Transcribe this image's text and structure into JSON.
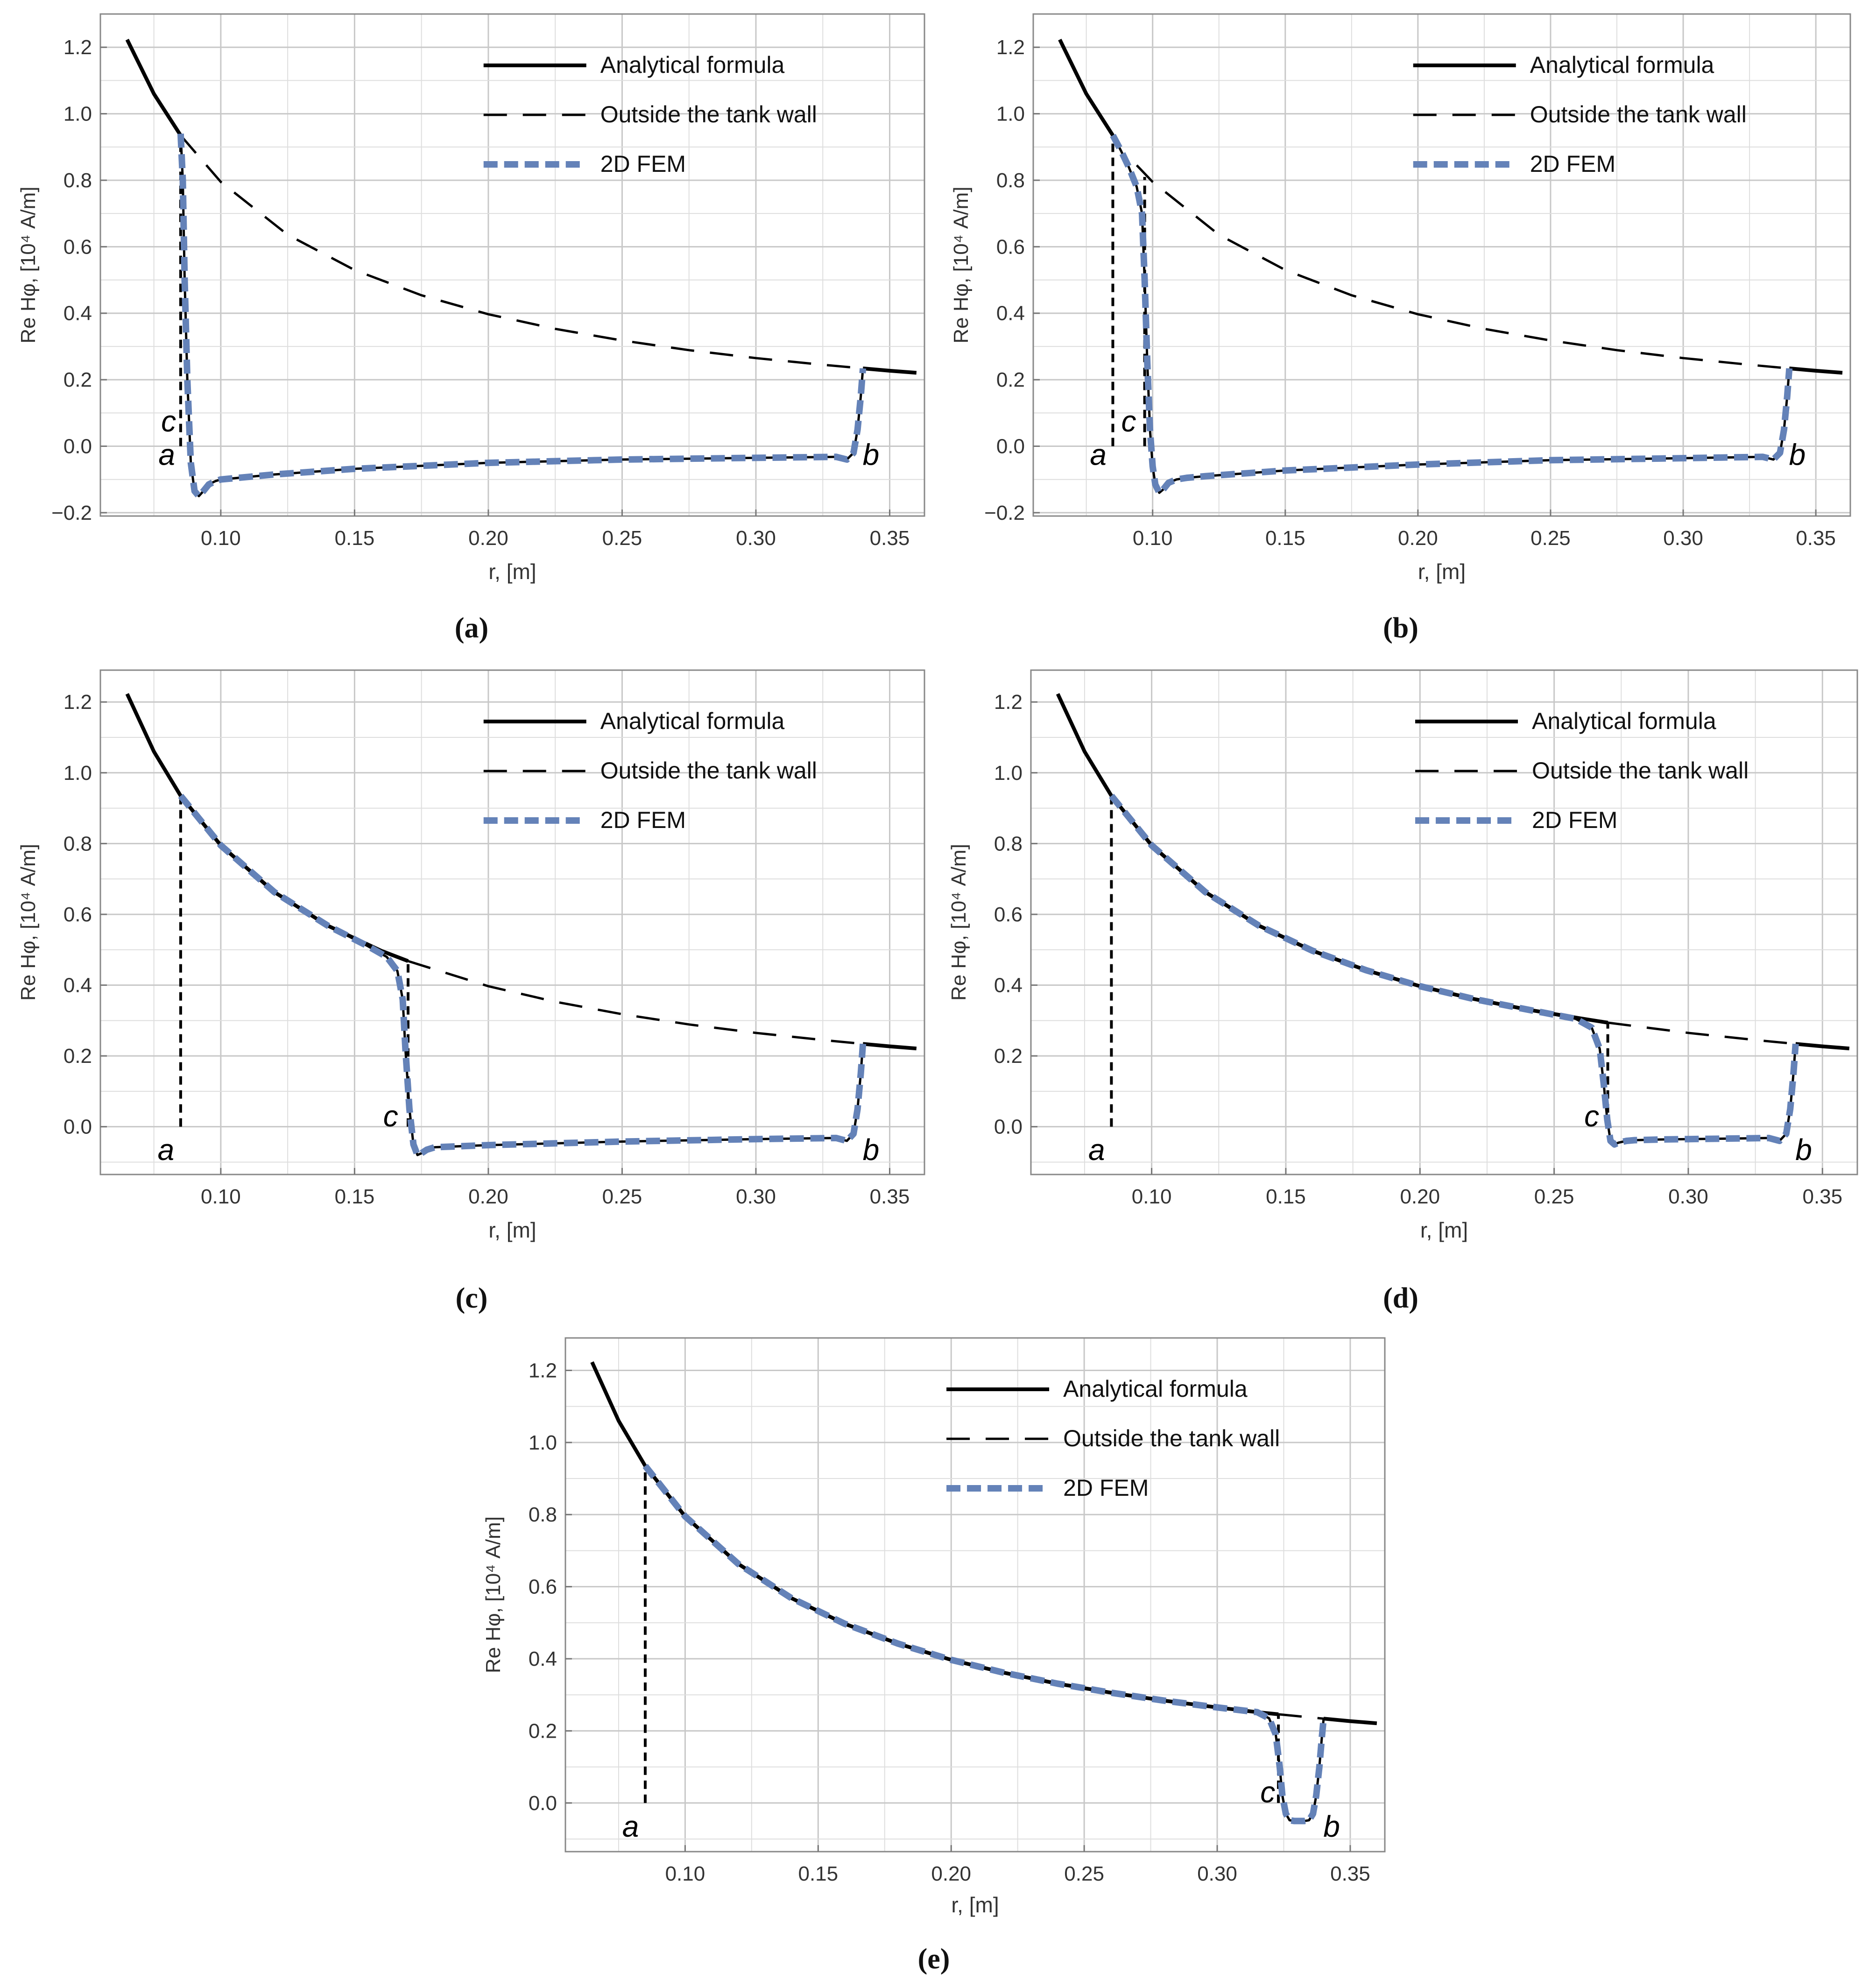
{
  "figure": {
    "captions": [
      "(a)",
      "(b)",
      "(c)",
      "(d)",
      "(e)"
    ]
  },
  "chart_data": [
    {
      "panel": "(a)",
      "type": "line",
      "xlabel": "r, [m]",
      "ylabel": "Re Hφ, [10⁴ A/m]",
      "xlim": [
        0.055,
        0.363
      ],
      "ylim": [
        -0.21,
        1.3
      ],
      "xticks": [
        0.1,
        0.15,
        0.2,
        0.25,
        0.3,
        0.35
      ],
      "xtick_labels": [
        "0.10",
        "0.15",
        "0.20",
        "0.25",
        "0.30",
        "0.35"
      ],
      "yticks": [
        -0.2,
        0.0,
        0.2,
        0.4,
        0.6,
        0.8,
        1.0,
        1.2
      ],
      "ytick_labels": [
        "−0.2",
        "0.0",
        "0.2",
        "0.4",
        "0.6",
        "0.8",
        "1.0",
        "1.2"
      ],
      "grid": true,
      "legend_position": "top-right",
      "legend": [
        "Analytical formula",
        "Outside the tank wall",
        "2D FEM"
      ],
      "series": [
        {
          "name": "Analytical formula",
          "style": "solid-black",
          "x": [
            0.065,
            0.075,
            0.085
          ],
          "y": [
            1.223,
            1.06,
            0.935
          ]
        },
        {
          "name": "Outside the tank wall",
          "style": "dashed-black",
          "x": [
            0.085,
            0.1,
            0.125,
            0.15,
            0.175,
            0.2,
            0.225,
            0.25,
            0.275,
            0.3,
            0.325,
            0.34
          ],
          "y": [
            0.935,
            0.795,
            0.636,
            0.53,
            0.454,
            0.397,
            0.353,
            0.318,
            0.289,
            0.265,
            0.245,
            0.234
          ]
        },
        {
          "name": "Analytical formula",
          "style": "solid-black",
          "x": [
            0.34,
            0.35,
            0.36
          ],
          "y": [
            0.234,
            0.227,
            0.221
          ]
        },
        {
          "name": "2D FEM",
          "style": "fem",
          "x": [
            0.085,
            0.0858,
            0.0865,
            0.0875,
            0.0888,
            0.0902,
            0.0918,
            0.0935,
            0.0955,
            0.098,
            0.1,
            0.12,
            0.15,
            0.2,
            0.25,
            0.3,
            0.33,
            0.334,
            0.3365,
            0.338,
            0.3392,
            0.34
          ],
          "y": [
            0.94,
            0.8,
            0.5,
            0.2,
            -0.05,
            -0.135,
            -0.15,
            -0.135,
            -0.115,
            -0.105,
            -0.1,
            -0.085,
            -0.068,
            -0.05,
            -0.04,
            -0.035,
            -0.032,
            -0.04,
            -0.02,
            0.05,
            0.15,
            0.234
          ]
        }
      ],
      "verticals": [
        {
          "x": 0.085,
          "y0": 0.0,
          "y1": 0.935,
          "style": "short-dash"
        }
      ],
      "annotations": [
        {
          "text": "c",
          "x": 0.0805,
          "y": 0.075
        },
        {
          "text": "a",
          "x": 0.0798,
          "y": -0.025
        },
        {
          "text": "b",
          "x": 0.343,
          "y": -0.025
        }
      ]
    },
    {
      "panel": "(b)",
      "type": "line",
      "xlabel": "r, [m]",
      "ylabel": "Re Hφ, [10⁴ A/m]",
      "xlim": [
        0.055,
        0.363
      ],
      "ylim": [
        -0.21,
        1.3
      ],
      "xticks": [
        0.1,
        0.15,
        0.2,
        0.25,
        0.3,
        0.35
      ],
      "xtick_labels": [
        "0.10",
        "0.15",
        "0.20",
        "0.25",
        "0.30",
        "0.35"
      ],
      "yticks": [
        -0.2,
        0.0,
        0.2,
        0.4,
        0.6,
        0.8,
        1.0,
        1.2
      ],
      "ytick_labels": [
        "−0.2",
        "0.0",
        "0.2",
        "0.4",
        "0.6",
        "0.8",
        "1.0",
        "1.2"
      ],
      "grid": true,
      "legend_position": "top-right",
      "legend": [
        "Analytical formula",
        "Outside the tank wall",
        "2D FEM"
      ],
      "series": [
        {
          "name": "Analytical formula",
          "style": "solid-black",
          "x": [
            0.065,
            0.075,
            0.085
          ],
          "y": [
            1.223,
            1.06,
            0.935
          ]
        },
        {
          "name": "Outside the tank wall",
          "style": "dashed-black",
          "x": [
            0.094,
            0.1,
            0.125,
            0.15,
            0.175,
            0.2,
            0.225,
            0.25,
            0.275,
            0.3,
            0.325,
            0.34
          ],
          "y": [
            0.845,
            0.795,
            0.636,
            0.53,
            0.454,
            0.397,
            0.353,
            0.318,
            0.289,
            0.265,
            0.245,
            0.234
          ]
        },
        {
          "name": "Analytical formula",
          "style": "solid-black",
          "x": [
            0.34,
            0.35,
            0.36
          ],
          "y": [
            0.234,
            0.227,
            0.221
          ]
        },
        {
          "name": "2D FEM",
          "style": "fem",
          "x": [
            0.085,
            0.088,
            0.091,
            0.094,
            0.096,
            0.097,
            0.098,
            0.099,
            0.1,
            0.101,
            0.1025,
            0.104,
            0.106,
            0.109,
            0.113,
            0.12,
            0.15,
            0.2,
            0.25,
            0.3,
            0.33,
            0.334,
            0.3365,
            0.338,
            0.3392,
            0.34
          ],
          "y": [
            0.935,
            0.89,
            0.84,
            0.78,
            0.7,
            0.5,
            0.25,
            0.05,
            -0.06,
            -0.115,
            -0.14,
            -0.13,
            -0.11,
            -0.1,
            -0.095,
            -0.09,
            -0.073,
            -0.055,
            -0.042,
            -0.036,
            -0.032,
            -0.04,
            -0.02,
            0.05,
            0.15,
            0.234
          ]
        }
      ],
      "verticals": [
        {
          "x": 0.085,
          "y0": 0.0,
          "y1": 0.935,
          "style": "short-dash"
        },
        {
          "x": 0.097,
          "y0": 0.0,
          "y1": 0.81,
          "style": "short-dash"
        }
      ],
      "annotations": [
        {
          "text": "a",
          "x": 0.0795,
          "y": -0.025
        },
        {
          "text": "c",
          "x": 0.091,
          "y": 0.075
        },
        {
          "text": "b",
          "x": 0.343,
          "y": -0.025
        }
      ]
    },
    {
      "panel": "(c)",
      "type": "line",
      "xlabel": "r, [m]",
      "ylabel": "Re Hφ, [10⁴ A/m]",
      "xlim": [
        0.055,
        0.363
      ],
      "ylim": [
        -0.135,
        1.29
      ],
      "xticks": [
        0.1,
        0.15,
        0.2,
        0.25,
        0.3,
        0.35
      ],
      "xtick_labels": [
        "0.10",
        "0.15",
        "0.20",
        "0.25",
        "0.30",
        "0.35"
      ],
      "yticks": [
        0.0,
        0.2,
        0.4,
        0.6,
        0.8,
        1.0,
        1.2
      ],
      "ytick_labels": [
        "0.0",
        "0.2",
        "0.4",
        "0.6",
        "0.8",
        "1.0",
        "1.2"
      ],
      "grid": true,
      "legend_position": "top-right",
      "legend": [
        "Analytical formula",
        "Outside the tank wall",
        "2D FEM"
      ],
      "series": [
        {
          "name": "Analytical formula",
          "style": "solid-black",
          "x": [
            0.065,
            0.075,
            0.085,
            0.1,
            0.12,
            0.14,
            0.16,
            0.17
          ],
          "y": [
            1.223,
            1.06,
            0.935,
            0.795,
            0.663,
            0.568,
            0.497,
            0.468
          ]
        },
        {
          "name": "Outside the tank wall",
          "style": "dashed-black",
          "x": [
            0.17,
            0.2,
            0.225,
            0.25,
            0.275,
            0.3,
            0.325,
            0.34
          ],
          "y": [
            0.468,
            0.397,
            0.353,
            0.318,
            0.289,
            0.265,
            0.245,
            0.234
          ]
        },
        {
          "name": "Analytical formula",
          "style": "solid-black",
          "x": [
            0.34,
            0.35,
            0.36
          ],
          "y": [
            0.234,
            0.227,
            0.221
          ]
        },
        {
          "name": "2D FEM",
          "style": "fem",
          "x": [
            0.085,
            0.1,
            0.12,
            0.14,
            0.155,
            0.162,
            0.166,
            0.168,
            0.169,
            0.1705,
            0.172,
            0.1735,
            0.175,
            0.177,
            0.18,
            0.19,
            0.2,
            0.25,
            0.3,
            0.33,
            0.334,
            0.3365,
            0.338,
            0.3392,
            0.34
          ],
          "y": [
            0.935,
            0.795,
            0.663,
            0.568,
            0.51,
            0.48,
            0.44,
            0.36,
            0.22,
            0.05,
            -0.05,
            -0.08,
            -0.075,
            -0.065,
            -0.058,
            -0.055,
            -0.052,
            -0.042,
            -0.035,
            -0.032,
            -0.04,
            -0.02,
            0.05,
            0.15,
            0.234
          ]
        }
      ],
      "verticals": [
        {
          "x": 0.085,
          "y0": 0.0,
          "y1": 0.935,
          "style": "short-dash"
        },
        {
          "x": 0.17,
          "y0": 0.0,
          "y1": 0.468,
          "style": "short-dash"
        }
      ],
      "annotations": [
        {
          "text": "a",
          "x": 0.0795,
          "y": -0.065
        },
        {
          "text": "c",
          "x": 0.1635,
          "y": 0.03
        },
        {
          "text": "b",
          "x": 0.343,
          "y": -0.065
        }
      ]
    },
    {
      "panel": "(d)",
      "type": "line",
      "xlabel": "r, [m]",
      "ylabel": "Re Hφ, [10⁴ A/m]",
      "xlim": [
        0.055,
        0.363
      ],
      "ylim": [
        -0.135,
        1.29
      ],
      "xticks": [
        0.1,
        0.15,
        0.2,
        0.25,
        0.3,
        0.35
      ],
      "xtick_labels": [
        "0.10",
        "0.15",
        "0.20",
        "0.25",
        "0.30",
        "0.35"
      ],
      "yticks": [
        0.0,
        0.2,
        0.4,
        0.6,
        0.8,
        1.0,
        1.2
      ],
      "ytick_labels": [
        "0.0",
        "0.2",
        "0.4",
        "0.6",
        "0.8",
        "1.0",
        "1.2"
      ],
      "grid": true,
      "legend_position": "top-right",
      "legend": [
        "Analytical formula",
        "Outside the tank wall",
        "2D FEM"
      ],
      "series": [
        {
          "name": "Analytical formula",
          "style": "solid-black",
          "x": [
            0.065,
            0.075,
            0.085,
            0.1,
            0.12,
            0.14,
            0.16,
            0.18,
            0.2,
            0.22,
            0.24,
            0.26,
            0.27
          ],
          "y": [
            1.223,
            1.06,
            0.935,
            0.795,
            0.663,
            0.568,
            0.497,
            0.442,
            0.397,
            0.361,
            0.331,
            0.306,
            0.294
          ]
        },
        {
          "name": "Outside the tank wall",
          "style": "dashed-black",
          "x": [
            0.27,
            0.3,
            0.325,
            0.34
          ],
          "y": [
            0.294,
            0.265,
            0.245,
            0.234
          ]
        },
        {
          "name": "Analytical formula",
          "style": "solid-black",
          "x": [
            0.34,
            0.35,
            0.36
          ],
          "y": [
            0.234,
            0.227,
            0.221
          ]
        },
        {
          "name": "2D FEM",
          "style": "fem",
          "x": [
            0.085,
            0.1,
            0.12,
            0.14,
            0.16,
            0.18,
            0.2,
            0.22,
            0.24,
            0.258,
            0.264,
            0.267,
            0.2685,
            0.2698,
            0.271,
            0.2725,
            0.274,
            0.277,
            0.28,
            0.29,
            0.3,
            0.31,
            0.32,
            0.33,
            0.334,
            0.3365,
            0.338,
            0.3392,
            0.34
          ],
          "y": [
            0.935,
            0.795,
            0.663,
            0.568,
            0.497,
            0.442,
            0.397,
            0.361,
            0.331,
            0.305,
            0.28,
            0.22,
            0.12,
            0.02,
            -0.04,
            -0.05,
            -0.045,
            -0.04,
            -0.038,
            -0.036,
            -0.035,
            -0.034,
            -0.033,
            -0.032,
            -0.04,
            -0.02,
            0.05,
            0.15,
            0.234
          ]
        }
      ],
      "verticals": [
        {
          "x": 0.085,
          "y0": 0.0,
          "y1": 0.935,
          "style": "short-dash"
        },
        {
          "x": 0.27,
          "y0": 0.0,
          "y1": 0.294,
          "style": "short-dash"
        }
      ],
      "annotations": [
        {
          "text": "a",
          "x": 0.0795,
          "y": -0.065
        },
        {
          "text": "c",
          "x": 0.264,
          "y": 0.03
        },
        {
          "text": "b",
          "x": 0.343,
          "y": -0.065
        }
      ]
    },
    {
      "panel": "(e)",
      "type": "line",
      "xlabel": "r, [m]",
      "ylabel": "Re Hφ, [10⁴ A/m]",
      "xlim": [
        0.055,
        0.363
      ],
      "ylim": [
        -0.135,
        1.29
      ],
      "xticks": [
        0.1,
        0.15,
        0.2,
        0.25,
        0.3,
        0.35
      ],
      "xtick_labels": [
        "0.10",
        "0.15",
        "0.20",
        "0.25",
        "0.30",
        "0.35"
      ],
      "yticks": [
        0.0,
        0.2,
        0.4,
        0.6,
        0.8,
        1.0,
        1.2
      ],
      "ytick_labels": [
        "0.0",
        "0.2",
        "0.4",
        "0.6",
        "0.8",
        "1.0",
        "1.2"
      ],
      "grid": true,
      "legend_position": "top-right",
      "legend": [
        "Analytical formula",
        "Outside the tank wall",
        "2D FEM"
      ],
      "series": [
        {
          "name": "Analytical formula",
          "style": "solid-black",
          "x": [
            0.065,
            0.075,
            0.085,
            0.1,
            0.12,
            0.14,
            0.16,
            0.18,
            0.2,
            0.22,
            0.24,
            0.26,
            0.28,
            0.3,
            0.315,
            0.323
          ],
          "y": [
            1.223,
            1.06,
            0.935,
            0.795,
            0.663,
            0.568,
            0.497,
            0.442,
            0.397,
            0.361,
            0.331,
            0.306,
            0.284,
            0.265,
            0.252,
            0.246
          ]
        },
        {
          "name": "Outside the tank wall",
          "style": "dashed-black",
          "x": [
            0.323,
            0.33,
            0.34
          ],
          "y": [
            0.246,
            0.241,
            0.234
          ]
        },
        {
          "name": "Analytical formula",
          "style": "solid-black",
          "x": [
            0.34,
            0.35,
            0.36
          ],
          "y": [
            0.234,
            0.227,
            0.221
          ]
        },
        {
          "name": "2D FEM",
          "style": "fem",
          "x": [
            0.085,
            0.1,
            0.12,
            0.14,
            0.16,
            0.18,
            0.2,
            0.22,
            0.24,
            0.26,
            0.28,
            0.3,
            0.315,
            0.3195,
            0.322,
            0.3235,
            0.3245,
            0.3258,
            0.3272,
            0.329,
            0.331,
            0.3328,
            0.3345,
            0.336,
            0.3372,
            0.3384,
            0.3393,
            0.34
          ],
          "y": [
            0.935,
            0.795,
            0.663,
            0.568,
            0.497,
            0.442,
            0.397,
            0.361,
            0.331,
            0.306,
            0.284,
            0.265,
            0.252,
            0.235,
            0.19,
            0.1,
            0.02,
            -0.03,
            -0.048,
            -0.05,
            -0.05,
            -0.05,
            -0.048,
            -0.03,
            0.02,
            0.1,
            0.18,
            0.234
          ]
        }
      ],
      "verticals": [
        {
          "x": 0.085,
          "y0": 0.0,
          "y1": 0.935,
          "style": "short-dash"
        },
        {
          "x": 0.323,
          "y0": 0.0,
          "y1": 0.246,
          "style": "short-dash"
        }
      ],
      "annotations": [
        {
          "text": "a",
          "x": 0.0795,
          "y": -0.065
        },
        {
          "text": "c",
          "x": 0.319,
          "y": 0.03
        },
        {
          "text": "b",
          "x": 0.343,
          "y": -0.065
        }
      ]
    }
  ]
}
